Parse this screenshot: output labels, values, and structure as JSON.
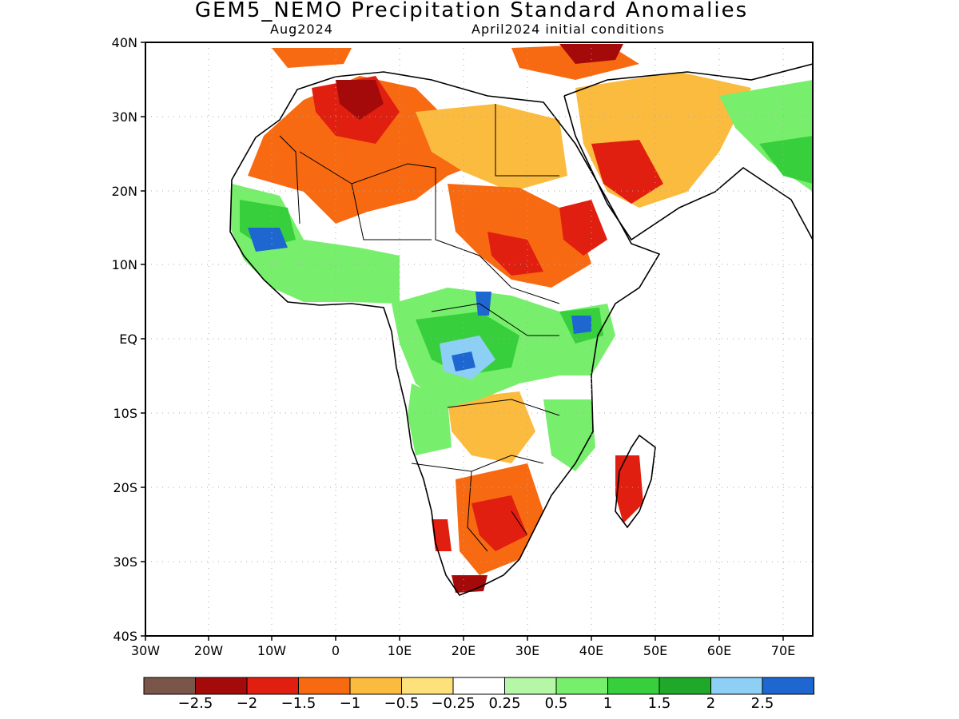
{
  "header": {
    "title": "GEM5_NEMO Precipitation Standard Anomalies",
    "valid_month": "Aug2024",
    "init_conditions": "April2024 initial conditions"
  },
  "axes": {
    "lat_labels": [
      "40N",
      "30N",
      "20N",
      "10N",
      "EQ",
      "10S",
      "20S",
      "30S",
      "40S"
    ],
    "lon_labels": [
      "30W",
      "20W",
      "10W",
      "0",
      "10E",
      "20E",
      "30E",
      "40E",
      "50E",
      "60E",
      "70E"
    ]
  },
  "colorbar": {
    "colors": [
      "#7a5549",
      "#a50a0a",
      "#e11f10",
      "#f86a12",
      "#fbbb3e",
      "#fde27c",
      "#ffffff",
      "#b5f7a6",
      "#78ee6d",
      "#37cf3c",
      "#1fa82a",
      "#8ecff5",
      "#1e67d0"
    ],
    "labels": [
      "−2.5",
      "−2",
      "−1.5",
      "−1",
      "−0.5",
      "−0.25",
      "0.25",
      "0.5",
      "1",
      "1.5",
      "2",
      "2.5"
    ]
  },
  "anomaly_palette": {
    "very_dry": "#a50a0a",
    "dry_strong": "#e11f10",
    "dry": "#f86a12",
    "dry_mod": "#fbbb3e",
    "dry_weak": "#fde27c",
    "neutral": "#ffffff",
    "wet_weak": "#b5f7a6",
    "wet": "#78ee6d",
    "wet_mod": "#37cf3c",
    "wet_strong": "#1fa82a",
    "wet_high": "#8ecff5",
    "wet_extreme": "#1e67d0"
  }
}
